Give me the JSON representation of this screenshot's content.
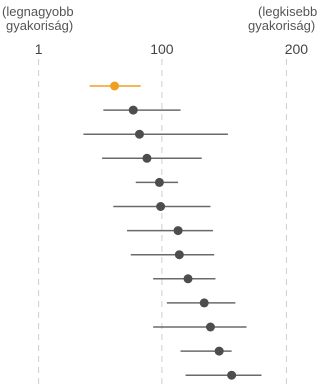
{
  "chart_data": {
    "type": "scatter",
    "title": "",
    "xlabel": "",
    "ylabel": "",
    "xlim": [
      -30,
      235
    ],
    "x_ticks": [
      {
        "value": 1,
        "label": "1"
      },
      {
        "value": 100,
        "label": "100"
      },
      {
        "value": 200,
        "label": "200"
      }
    ],
    "x_end_labels": {
      "left": [
        "(legnagyobb",
        "gyakoriság)"
      ],
      "right": [
        "(legkisebb",
        "gyakoriság)"
      ]
    },
    "grid": "vertical dashed at ticks",
    "highlight_color": "#f0a020",
    "default_color": "#4d4d4d",
    "series": [
      {
        "points": [
          {
            "x": 62,
            "low": 42,
            "high": 83,
            "highlight": true
          },
          {
            "x": 77,
            "low": 53,
            "high": 115,
            "highlight": false
          },
          {
            "x": 82,
            "low": 37,
            "high": 153,
            "highlight": false
          },
          {
            "x": 88,
            "low": 52,
            "high": 132,
            "highlight": false
          },
          {
            "x": 98,
            "low": 79,
            "high": 113,
            "highlight": false
          },
          {
            "x": 99,
            "low": 61,
            "high": 139,
            "highlight": false
          },
          {
            "x": 113,
            "low": 72,
            "high": 141,
            "highlight": false
          },
          {
            "x": 114,
            "low": 75,
            "high": 142,
            "highlight": false
          },
          {
            "x": 121,
            "low": 93,
            "high": 143,
            "highlight": false
          },
          {
            "x": 134,
            "low": 104,
            "high": 159,
            "highlight": false
          },
          {
            "x": 139,
            "low": 93,
            "high": 168,
            "highlight": false
          },
          {
            "x": 146,
            "low": 115,
            "high": 156,
            "highlight": false
          },
          {
            "x": 156,
            "low": 119,
            "high": 180,
            "highlight": false
          }
        ]
      }
    ]
  }
}
